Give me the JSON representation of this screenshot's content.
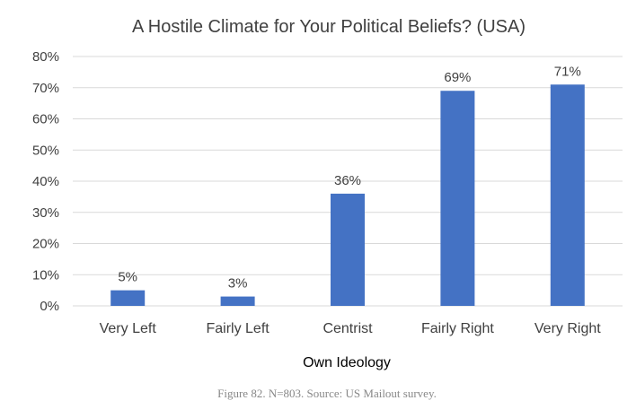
{
  "chart_data": {
    "type": "bar",
    "title": "A Hostile Climate for Your Political Beliefs? (USA)",
    "xlabel": "Own Ideology",
    "ylabel": "",
    "categories": [
      "Very Left",
      "Fairly Left",
      "Centrist",
      "Fairly Right",
      "Very Right"
    ],
    "values": [
      5,
      3,
      36,
      69,
      71
    ],
    "value_labels": [
      "5%",
      "3%",
      "36%",
      "69%",
      "71%"
    ],
    "ylim": [
      0,
      80
    ],
    "yticks": [
      0,
      10,
      20,
      30,
      40,
      50,
      60,
      70,
      80
    ],
    "ytick_labels": [
      "0%",
      "10%",
      "20%",
      "30%",
      "40%",
      "50%",
      "60%",
      "70%",
      "80%"
    ],
    "grid": true,
    "legend": "none",
    "bar_color": "#4472c4"
  },
  "caption": "Figure 82. N=803. Source: US Mailout survey."
}
